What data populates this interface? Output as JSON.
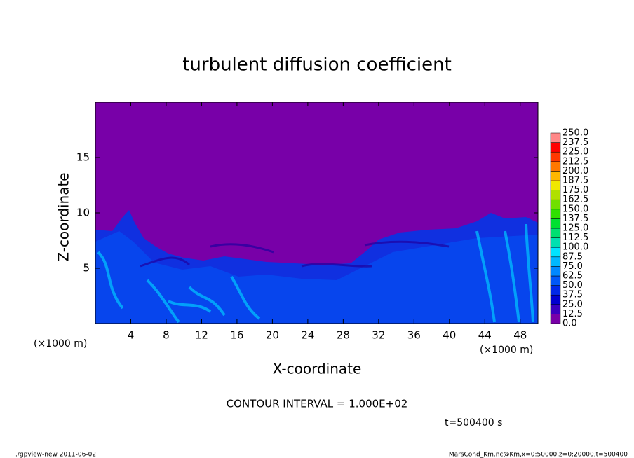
{
  "chart_data": {
    "type": "contour",
    "title": "turbulent diffusion coefficient",
    "xlabel": "X-coordinate",
    "ylabel": "Z-coordinate",
    "x_unit": "(×1000 m)",
    "xlim": [
      0,
      50
    ],
    "ylim": [
      0,
      20
    ],
    "xticks": [
      4,
      8,
      12,
      16,
      20,
      24,
      28,
      32,
      36,
      40,
      44,
      48
    ],
    "yticks": [
      5,
      10,
      15
    ],
    "levels": [
      {
        "value": 0,
        "label": "0.0"
      },
      {
        "value": 12.5,
        "label": "12.5"
      },
      {
        "value": 25,
        "label": "25.0"
      },
      {
        "value": 37.5,
        "label": "37.5"
      },
      {
        "value": 50,
        "label": "50.0"
      },
      {
        "value": 62.5,
        "label": "62.5"
      },
      {
        "value": 75,
        "label": "75.0"
      },
      {
        "value": 87.5,
        "label": "87.5"
      },
      {
        "value": 100,
        "label": "100.0"
      },
      {
        "value": 112.5,
        "label": "112.5"
      },
      {
        "value": 125,
        "label": "125.0"
      },
      {
        "value": 137.5,
        "label": "137.5"
      },
      {
        "value": 150,
        "label": "150.0"
      },
      {
        "value": 162.5,
        "label": "162.5"
      },
      {
        "value": 175,
        "label": "175.0"
      },
      {
        "value": 187.5,
        "label": "187.5"
      },
      {
        "value": 200,
        "label": "200.0"
      },
      {
        "value": 212.5,
        "label": "212.5"
      },
      {
        "value": 225,
        "label": "225.0"
      },
      {
        "value": 237.5,
        "label": "237.5"
      },
      {
        "value": 250,
        "label": "250.0"
      }
    ],
    "colors": [
      "#7800a8",
      "#3a00c0",
      "#0000d0",
      "#0028e8",
      "#0058f8",
      "#0088ff",
      "#00b8ff",
      "#00e4ff",
      "#00e0b0",
      "#00e070",
      "#00e030",
      "#30e000",
      "#70e000",
      "#b0e000",
      "#f0e800",
      "#ffb800",
      "#ff7800",
      "#ff3800",
      "#ff0000",
      "#ff8888"
    ],
    "annotations": [
      "CONTOUR INTERVAL = 1.000E+02",
      "t=500400 s"
    ],
    "footer_left": "./gpview-new   2011-06-02",
    "footer_right": "MarsCond_Km.nc@Km,x=0:50000,z=0:20000,t=500400"
  }
}
